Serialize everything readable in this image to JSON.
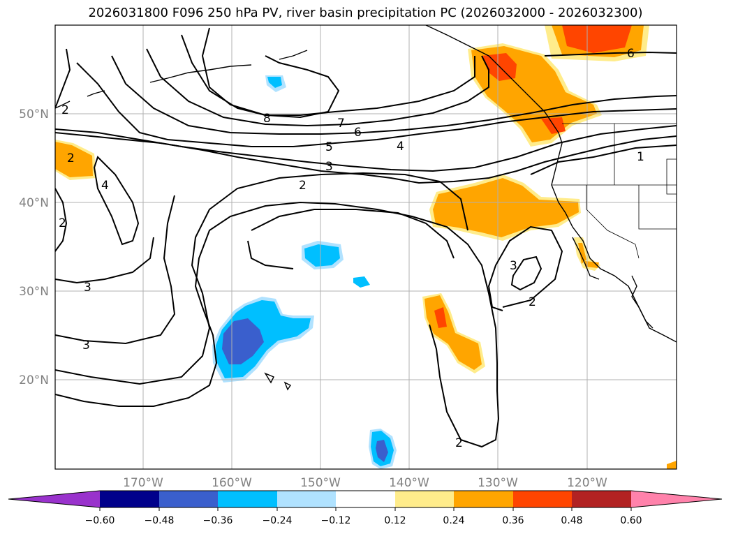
{
  "title": "2026031800 F096 250 hPa PV, river basin precipitation PC (2026032000 - 2026032300)",
  "map": {
    "lon_labels": [
      "170°W",
      "160°W",
      "150°W",
      "140°W",
      "130°W",
      "120°W"
    ],
    "lat_labels": [
      "50°N",
      "40°N",
      "30°N",
      "20°N"
    ],
    "contour_labels": [
      "2",
      "2",
      "2",
      "3",
      "3",
      "4",
      "5",
      "6",
      "7",
      "8",
      "4",
      "3",
      "2",
      "1",
      "3",
      "2",
      "6",
      "2"
    ]
  },
  "colorbar": {
    "tick_labels": [
      "−0.60",
      "−0.48",
      "−0.36",
      "−0.24",
      "−0.12",
      "0.12",
      "0.24",
      "0.36",
      "0.48",
      "0.60"
    ],
    "colors": [
      "#9932cc",
      "#00008b",
      "#3a5fcd",
      "#00bfff",
      "#b0e2ff",
      "#ffffff",
      "#ffec8b",
      "#ffa500",
      "#ff4500",
      "#b22222",
      "#ff82ab"
    ]
  }
}
